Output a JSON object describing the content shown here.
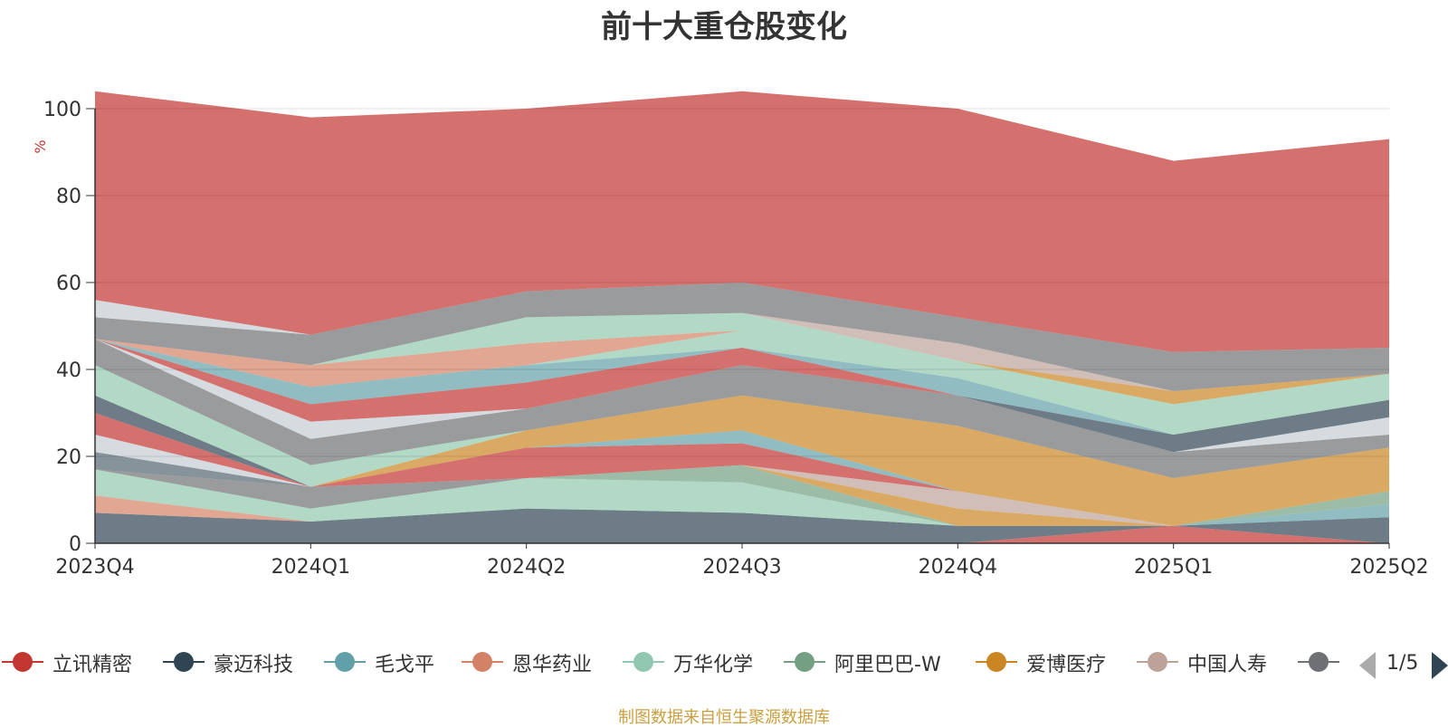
{
  "chart_data": {
    "type": "area",
    "title": "前十大重仓股变化",
    "ylabel": "%",
    "xlabel": "",
    "ylim": [
      0,
      100
    ],
    "yticks": [
      "0",
      "20",
      "40",
      "60",
      "80",
      "100"
    ],
    "categories": [
      "2023Q4",
      "2024Q1",
      "2024Q2",
      "2024Q3",
      "2024Q4",
      "2025Q1",
      "2025Q2"
    ],
    "stacked": true,
    "grid": true,
    "legend_position": "bottom",
    "series": [
      {
        "name": "立讯精密",
        "color": "#c23531",
        "values": [
          0,
          0,
          0,
          0,
          0,
          4,
          0
        ]
      },
      {
        "name": "豪迈科技",
        "color": "#2f4554",
        "values": [
          7,
          5,
          8,
          7,
          4,
          0,
          6
        ]
      },
      {
        "name": "毛戈平",
        "color": "#61a0a8",
        "values": [
          0,
          0,
          0,
          0,
          0,
          0,
          3
        ]
      },
      {
        "name": "恩华药业",
        "color": "#d48265",
        "values": [
          4,
          0,
          0,
          0,
          0,
          0,
          0
        ]
      },
      {
        "name": "万华化学",
        "color": "#91c7ae",
        "values": [
          6,
          3,
          7,
          7,
          0,
          0,
          0
        ]
      },
      {
        "name": "阿里巴巴-W",
        "color": "#749f83",
        "values": [
          0,
          0,
          0,
          4,
          0,
          0,
          3
        ]
      },
      {
        "name": "爱博医疗",
        "color": "#ca8622",
        "values": [
          0,
          0,
          0,
          0,
          4,
          0,
          0
        ]
      },
      {
        "name": "中国人寿",
        "color": "#bda29a",
        "values": [
          0,
          0,
          0,
          0,
          4,
          0,
          0
        ]
      },
      {
        "name": "",
        "color": "#6e7074",
        "values": [
          0,
          5,
          0,
          0,
          0,
          0,
          0
        ]
      },
      {
        "name": "",
        "color": "#546570",
        "values": [
          4,
          0,
          0,
          0,
          0,
          0,
          0
        ]
      },
      {
        "name": "",
        "color": "#c4ccd3",
        "values": [
          4,
          0,
          0,
          0,
          0,
          0,
          0
        ]
      },
      {
        "name": "",
        "color": "#c23531",
        "values": [
          5,
          0,
          7,
          5,
          0,
          0,
          0
        ]
      },
      {
        "name": "",
        "color": "#2f4554",
        "values": [
          4,
          0,
          0,
          0,
          0,
          0,
          0
        ]
      },
      {
        "name": "",
        "color": "#61a0a8",
        "values": [
          0,
          0,
          0,
          3,
          0,
          0,
          0
        ]
      },
      {
        "name": "",
        "color": "#ca8622",
        "values": [
          0,
          0,
          4,
          8,
          15,
          11,
          10
        ]
      },
      {
        "name": "",
        "color": "#91c7ae",
        "values": [
          7,
          5,
          0,
          0,
          0,
          0,
          0
        ]
      },
      {
        "name": "",
        "color": "#6e7074",
        "values": [
          6,
          6,
          5,
          7,
          7,
          6,
          3
        ]
      },
      {
        "name": "",
        "color": "#c4ccd3",
        "values": [
          0,
          4,
          0,
          0,
          0,
          0,
          4
        ]
      },
      {
        "name": "",
        "color": "#2f4554",
        "values": [
          0,
          0,
          0,
          0,
          0,
          4,
          4
        ]
      },
      {
        "name": "",
        "color": "#c23531",
        "values": [
          0,
          4,
          6,
          4,
          0,
          0,
          0
        ]
      },
      {
        "name": "",
        "color": "#61a0a8",
        "values": [
          0,
          4,
          4,
          0,
          4,
          0,
          0
        ]
      },
      {
        "name": "",
        "color": "#91c7ae",
        "values": [
          0,
          0,
          0,
          4,
          4,
          7,
          6
        ]
      },
      {
        "name": "",
        "color": "#ca8622",
        "values": [
          0,
          0,
          0,
          0,
          0,
          3,
          0
        ]
      },
      {
        "name": "",
        "color": "#d48265",
        "values": [
          0,
          5,
          5,
          0,
          0,
          0,
          0
        ]
      },
      {
        "name": "",
        "color": "#91c7ae",
        "values": [
          0,
          0,
          6,
          4,
          0,
          0,
          0
        ]
      },
      {
        "name": "",
        "color": "#bda29a",
        "values": [
          0,
          0,
          0,
          0,
          4,
          0,
          0
        ]
      },
      {
        "name": "",
        "color": "#6e7074",
        "values": [
          5,
          7,
          6,
          7,
          6,
          9,
          6
        ]
      },
      {
        "name": "",
        "color": "#c4ccd3",
        "values": [
          4,
          0,
          0,
          0,
          0,
          0,
          0
        ]
      },
      {
        "name": "",
        "color": "#c23531",
        "values": [
          48,
          50,
          42,
          44,
          48,
          44,
          48
        ]
      }
    ]
  },
  "legend": {
    "items": [
      {
        "label": "立讯精密",
        "color": "#c23531"
      },
      {
        "label": "豪迈科技",
        "color": "#2f4554"
      },
      {
        "label": "毛戈平",
        "color": "#61a0a8"
      },
      {
        "label": "恩华药业",
        "color": "#d48265"
      },
      {
        "label": "万华化学",
        "color": "#91c7ae"
      },
      {
        "label": "阿里巴巴-W",
        "color": "#749f83"
      },
      {
        "label": "爱博医疗",
        "color": "#ca8622"
      },
      {
        "label": "中国人寿",
        "color": "#bda29a"
      },
      {
        "label": "",
        "color": "#6e7074"
      }
    ],
    "page_indicator": "1/5"
  },
  "footer": {
    "note": "制图数据来自恒生聚源数据库"
  }
}
